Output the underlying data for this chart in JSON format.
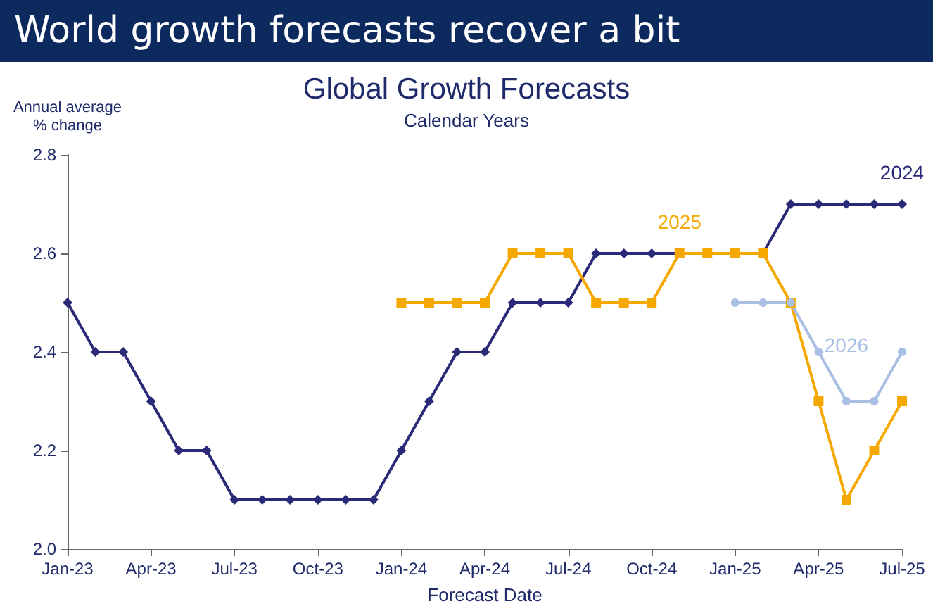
{
  "chart_data": {
    "type": "line",
    "title": "World growth forecasts recover a bit",
    "subtitle": "Global Growth Forecasts",
    "annotations": [
      "Calendar Years"
    ],
    "ylabel": "Annual average\n% change",
    "xlabel": "Forecast Date",
    "categories": [
      "Jan-23",
      null,
      null,
      "Apr-23",
      null,
      null,
      "Jul-23",
      null,
      null,
      "Oct-23",
      null,
      null,
      "Jan-24",
      null,
      null,
      "Apr-24",
      null,
      null,
      "Jul-24",
      null,
      null,
      "Oct-24",
      null,
      null,
      "Jan-25",
      null,
      null,
      "Apr-25",
      null,
      null,
      "Jul-25"
    ],
    "series": [
      {
        "name": "2024",
        "color": "#2b2a78",
        "marker": "diamond",
        "values": [
          2.5,
          2.4,
          2.4,
          2.3,
          2.2,
          2.2,
          2.1,
          2.1,
          2.1,
          2.1,
          2.1,
          2.1,
          2.2,
          2.3,
          2.4,
          2.4,
          2.5,
          2.5,
          2.5,
          2.6,
          2.6,
          2.6,
          2.6,
          2.6,
          2.6,
          2.6,
          2.7,
          2.7,
          2.7,
          2.7,
          2.7
        ]
      },
      {
        "name": "2025",
        "color": "#f5a800",
        "marker": "square",
        "values": [
          null,
          null,
          null,
          null,
          null,
          null,
          null,
          null,
          null,
          null,
          null,
          null,
          2.5,
          2.5,
          2.5,
          2.5,
          2.6,
          2.6,
          2.6,
          2.5,
          2.5,
          2.5,
          2.6,
          2.6,
          2.6,
          2.6,
          2.5,
          2.3,
          2.1,
          2.2,
          2.3
        ]
      },
      {
        "name": "2026",
        "color": "#a9c0e4",
        "marker": "circle",
        "values": [
          null,
          null,
          null,
          null,
          null,
          null,
          null,
          null,
          null,
          null,
          null,
          null,
          null,
          null,
          null,
          null,
          null,
          null,
          null,
          null,
          null,
          null,
          null,
          null,
          2.5,
          2.5,
          2.5,
          2.4,
          2.3,
          2.3,
          2.4
        ]
      }
    ],
    "ylim": [
      2.0,
      2.8
    ],
    "yticks": [
      {
        "value": 2,
        "label": "2.0"
      },
      2.2,
      2.4,
      2.6,
      2.8
    ],
    "grid": false,
    "legend": false,
    "line_style": "solid"
  }
}
